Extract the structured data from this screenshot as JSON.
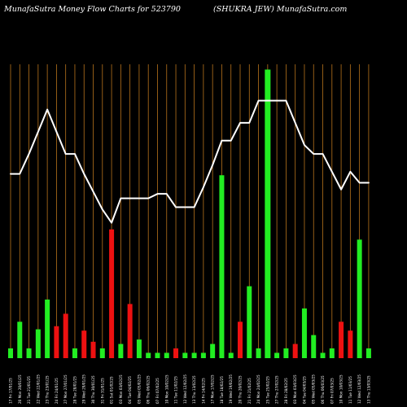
{
  "chart_data": {
    "type": "bar+line",
    "title": "MunafaSutra  Money Flow  Charts for 523790",
    "subtitle": "(SHUKRA JEW) MunafaSutra.com",
    "xlabel": "",
    "ylabel": "",
    "grid": "vertical",
    "legend": "none",
    "categories": [
      "17 Fri 17/01/25",
      "20 Mon 20/01/25",
      "21 Tue 21/01/25",
      "22 Wed 22/01/25",
      "23 Thu 23/01/25",
      "24 Fri 24/01/25",
      "27 Mon 27/01/25",
      "28 Tue 28/01/25",
      "29 Wed 29/01/25",
      "30 Thu 30/01/25",
      "31 Fri 31/01/25",
      "01 Sat 01/02/25",
      "03 Mon 03/02/25",
      "04 Tue 04/02/25",
      "05 Wed 05/02/25",
      "06 Thu 06/02/25",
      "07 Fri 07/02/25",
      "10 Mon 10/02/25",
      "11 Tue 11/02/25",
      "12 Wed 12/02/25",
      "13 Thu 13/02/25",
      "14 Fri 14/02/25",
      "17 Mon 17/02/25",
      "18 Tue 18/02/25",
      "19 Wed 19/02/25",
      "20 Thu 20/02/25",
      "21 Fri 21/02/25",
      "24 Mon 24/02/25",
      "25 Tue 25/02/25",
      "27 Thu 27/02/25",
      "28 Fri 28/02/25",
      "03 Mon 03/03/25",
      "04 Tue 04/03/25",
      "05 Wed 05/03/25",
      "06 Thu 06/03/25",
      "07 Fri 07/03/25",
      "10 Mon 10/03/25",
      "11 Tue 11/03/25",
      "12 Wed 12/03/25",
      "13 Thu 13/03/25"
    ],
    "bars": [
      {
        "value": 2.2,
        "color": "green"
      },
      {
        "value": 8.2,
        "color": "green"
      },
      {
        "value": 2.2,
        "color": "green"
      },
      {
        "value": 6.5,
        "color": "green"
      },
      {
        "value": 13.2,
        "color": "green"
      },
      {
        "value": 7.2,
        "color": "red"
      },
      {
        "value": 10.0,
        "color": "red"
      },
      {
        "value": 2.2,
        "color": "green"
      },
      {
        "value": 6.2,
        "color": "red"
      },
      {
        "value": 3.7,
        "color": "red"
      },
      {
        "value": 2.2,
        "color": "green"
      },
      {
        "value": 29.0,
        "color": "red"
      },
      {
        "value": 3.2,
        "color": "green"
      },
      {
        "value": 12.2,
        "color": "red"
      },
      {
        "value": 4.2,
        "color": "green"
      },
      {
        "value": 1.2,
        "color": "green"
      },
      {
        "value": 1.2,
        "color": "green"
      },
      {
        "value": 1.2,
        "color": "green"
      },
      {
        "value": 2.2,
        "color": "red"
      },
      {
        "value": 1.2,
        "color": "green"
      },
      {
        "value": 1.2,
        "color": "green"
      },
      {
        "value": 1.2,
        "color": "green"
      },
      {
        "value": 3.2,
        "color": "green"
      },
      {
        "value": 41.2,
        "color": "green"
      },
      {
        "value": 1.2,
        "color": "green"
      },
      {
        "value": 8.2,
        "color": "red"
      },
      {
        "value": 16.2,
        "color": "green"
      },
      {
        "value": 2.2,
        "color": "green"
      },
      {
        "value": 65.0,
        "color": "green"
      },
      {
        "value": 1.2,
        "color": "green"
      },
      {
        "value": 2.2,
        "color": "green"
      },
      {
        "value": 3.2,
        "color": "red"
      },
      {
        "value": 11.2,
        "color": "green"
      },
      {
        "value": 5.2,
        "color": "green"
      },
      {
        "value": 1.2,
        "color": "green"
      },
      {
        "value": 2.2,
        "color": "green"
      },
      {
        "value": 8.2,
        "color": "red"
      },
      {
        "value": 6.2,
        "color": "red"
      },
      {
        "value": 26.7,
        "color": "green"
      },
      {
        "value": 2.2,
        "color": "green"
      }
    ],
    "line": [
      41.5,
      41.5,
      46,
      51,
      56,
      51,
      46,
      46,
      41.5,
      37.5,
      33.5,
      30.5,
      36,
      36,
      36,
      36,
      37,
      37,
      34,
      34,
      34,
      38.5,
      43.5,
      49,
      49,
      53,
      53,
      58,
      58,
      58,
      58,
      53,
      48,
      46,
      46,
      42,
      38,
      42,
      39.5,
      39.5
    ],
    "ylim": [
      0,
      66
    ],
    "colors": {
      "background": "#000000",
      "grid": "#b8731c",
      "bar_up": "#22ee22",
      "bar_down": "#ee1111",
      "line": "#ffffff",
      "text": "#ffffff"
    }
  }
}
